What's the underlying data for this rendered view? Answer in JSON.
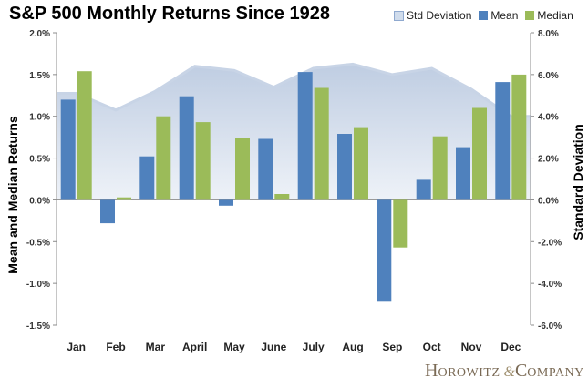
{
  "chart_data": {
    "type": "bar",
    "title": "S&P 500 Monthly Returns Since 1928",
    "categories": [
      "Jan",
      "Feb",
      "Mar",
      "April",
      "May",
      "June",
      "July",
      "Aug",
      "Sep",
      "Oct",
      "Nov",
      "Dec"
    ],
    "series": [
      {
        "name": "Std Deviation",
        "kind": "area",
        "axis": "right",
        "color": "#b7c7de",
        "values": [
          5.1,
          4.3,
          5.2,
          6.4,
          6.2,
          5.4,
          6.3,
          6.5,
          6.0,
          6.3,
          5.3,
          4.0
        ]
      },
      {
        "name": "Mean",
        "kind": "bar",
        "axis": "left",
        "color": "#4f81bd",
        "values": [
          1.2,
          -0.28,
          0.52,
          1.24,
          -0.07,
          0.73,
          1.53,
          0.79,
          -1.22,
          0.24,
          0.63,
          1.41
        ]
      },
      {
        "name": "Median",
        "kind": "bar",
        "axis": "left",
        "color": "#9bbb59",
        "values": [
          1.54,
          0.03,
          1.0,
          0.93,
          0.74,
          0.07,
          1.34,
          0.87,
          -0.57,
          0.76,
          1.1,
          1.5
        ]
      }
    ],
    "ylabel": "Mean and Median Returns",
    "y2label": "Standard Deviation",
    "ylim": [
      -1.5,
      2.0
    ],
    "y2lim": [
      -6.0,
      8.0
    ],
    "yticks": [
      "2.0%",
      "1.5%",
      "1.0%",
      "0.5%",
      "0.0%",
      "-0.5%",
      "-1.0%",
      "-1.5%"
    ],
    "y2ticks": [
      "8.0%",
      "6.0%",
      "4.0%",
      "2.0%",
      "0.0%",
      "-2.0%",
      "-4.0%",
      "-6.0%"
    ],
    "ytick_values": [
      2.0,
      1.5,
      1.0,
      0.5,
      0.0,
      -0.5,
      -1.0,
      -1.5
    ],
    "y2tick_values": [
      8.0,
      6.0,
      4.0,
      2.0,
      0.0,
      -2.0,
      -4.0,
      -6.0
    ],
    "legend_position": "top-right",
    "grid": false
  },
  "logo": {
    "text_first": "H",
    "text_rest": "OROWITZ",
    "amp": "&",
    "text_second": "C",
    "text_second_rest": "OMPANY"
  }
}
